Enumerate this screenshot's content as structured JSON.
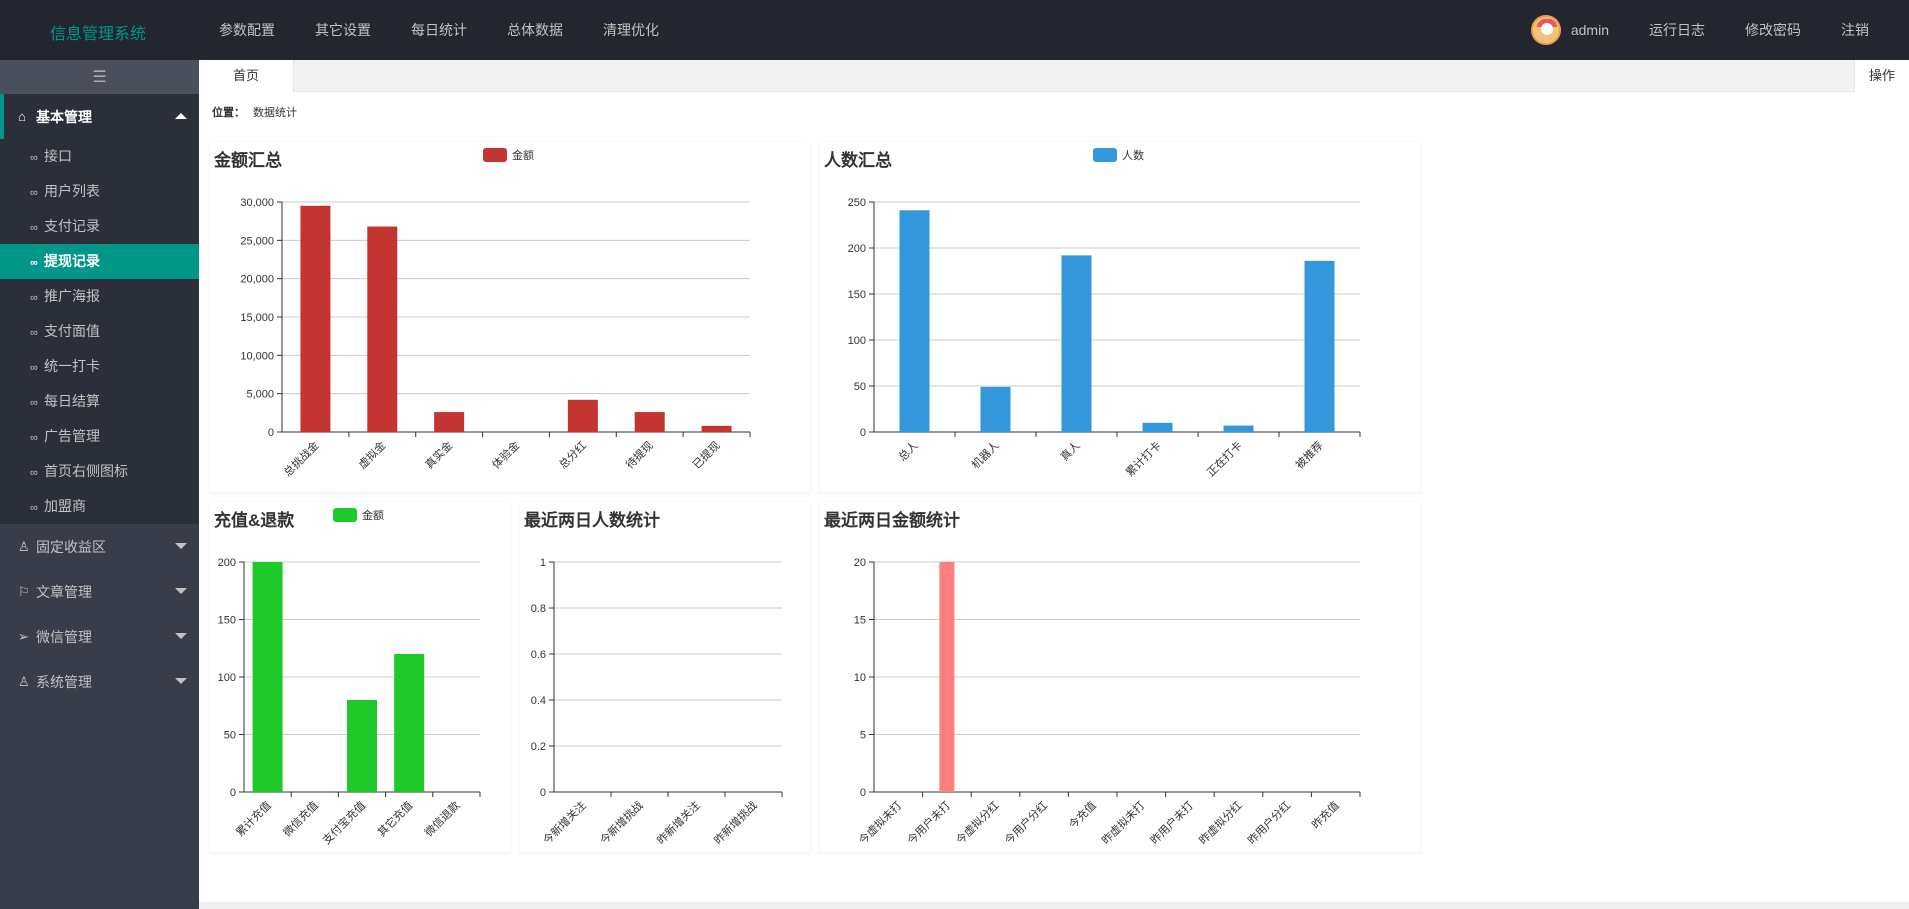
{
  "app": {
    "title": "信息管理系统"
  },
  "nav": [
    "参数配置",
    "其它设置",
    "每日统计",
    "总体数据",
    "清理优化"
  ],
  "user": {
    "name": "admin",
    "links": [
      "运行日志",
      "修改密码",
      "注销"
    ]
  },
  "sidebar": {
    "toggle_icon": "menu-toggle-icon",
    "groups": [
      {
        "label": "基本管理",
        "icon": "home-icon",
        "open": true,
        "items": [
          "接口",
          "用户列表",
          "支付记录",
          "提现记录",
          "推广海报",
          "支付面值",
          "统一打卡",
          "每日结算",
          "广告管理",
          "首页右侧图标",
          "加盟商"
        ],
        "active": "提现记录"
      },
      {
        "label": "固定收益区",
        "icon": "user-icon",
        "open": false
      },
      {
        "label": "文章管理",
        "icon": "flag-icon",
        "open": false
      },
      {
        "label": "微信管理",
        "icon": "send-icon",
        "open": false
      },
      {
        "label": "系统管理",
        "icon": "person-icon",
        "open": false
      }
    ]
  },
  "tabs": {
    "home": "首页",
    "ops": "操作"
  },
  "breadcrumb": {
    "label": "位置：",
    "value": "数据统计"
  },
  "colors": {
    "accent": "#009688",
    "red": "#c23531",
    "blue": "#3398db",
    "green": "#1fc92a",
    "pink": "#ff7f7f"
  },
  "chart_data": [
    {
      "id": "amount",
      "type": "bar",
      "title": "金额汇总",
      "series": [
        {
          "name": "金额",
          "color": "#c23531",
          "values": [
            29500,
            26800,
            2600,
            0,
            4200,
            2600,
            800
          ]
        }
      ],
      "categories": [
        "总挑战金",
        "虚拟金",
        "真实金",
        "体验金",
        "总分红",
        "待提现",
        "已提现"
      ],
      "yticks": [
        0,
        5000,
        10000,
        15000,
        20000,
        25000,
        30000
      ],
      "ytick_labels": [
        "0",
        "5,000",
        "10,000",
        "15,000",
        "20,000",
        "25,000",
        "30,000"
      ],
      "ylim": [
        0,
        30000
      ]
    },
    {
      "id": "people",
      "type": "bar",
      "title": "人数汇总",
      "series": [
        {
          "name": "人数",
          "color": "#3398db",
          "values": [
            241,
            49,
            192,
            10,
            7,
            186
          ]
        }
      ],
      "categories": [
        "总人",
        "机器人",
        "真人",
        "累计打卡",
        "正在打卡",
        "被推荐"
      ],
      "yticks": [
        0,
        50,
        100,
        150,
        200,
        250
      ],
      "ytick_labels": [
        "0",
        "50",
        "100",
        "150",
        "200",
        "250"
      ],
      "ylim": [
        0,
        250
      ]
    },
    {
      "id": "recharge",
      "type": "bar",
      "title": "充值&退款",
      "series": [
        {
          "name": "金额",
          "color": "#1fc92a",
          "values": [
            200,
            0,
            80,
            120,
            0
          ]
        }
      ],
      "categories": [
        "累计充值",
        "微信充值",
        "支付宝充值",
        "其它充值",
        "微信退款"
      ],
      "yticks": [
        0,
        50,
        100,
        150,
        200
      ],
      "ytick_labels": [
        "0",
        "50",
        "100",
        "150",
        "200"
      ],
      "ylim": [
        0,
        200
      ]
    },
    {
      "id": "twoday_people",
      "type": "bar",
      "title": "最近两日人数统计",
      "series": [
        {
          "color": "#c23531",
          "values": [
            0,
            0,
            0,
            0
          ]
        }
      ],
      "categories": [
        "今新增关注",
        "今新增挑战",
        "昨新增关注",
        "昨新增挑战"
      ],
      "yticks": [
        0,
        0.2,
        0.4,
        0.6,
        0.8,
        1
      ],
      "ytick_labels": [
        "0",
        "0.2",
        "0.4",
        "0.6",
        "0.8",
        "1"
      ],
      "ylim": [
        0,
        1
      ]
    },
    {
      "id": "twoday_amount",
      "type": "bar",
      "title": "最近两日金额统计",
      "series": [
        {
          "color": "#ff7f7f",
          "values": [
            0,
            20,
            0,
            0,
            0,
            0,
            0,
            0,
            0,
            0
          ]
        }
      ],
      "categories": [
        "今虚拟未打",
        "今用户未打",
        "今虚拟分红",
        "今用户分红",
        "今充值",
        "昨虚拟未打",
        "昨用户未打",
        "昨虚拟分红",
        "昨用户分红",
        "昨充值"
      ],
      "yticks": [
        0,
        5,
        10,
        15,
        20
      ],
      "ytick_labels": [
        "0",
        "5",
        "10",
        "15",
        "20"
      ],
      "ylim": [
        0,
        20
      ]
    }
  ]
}
